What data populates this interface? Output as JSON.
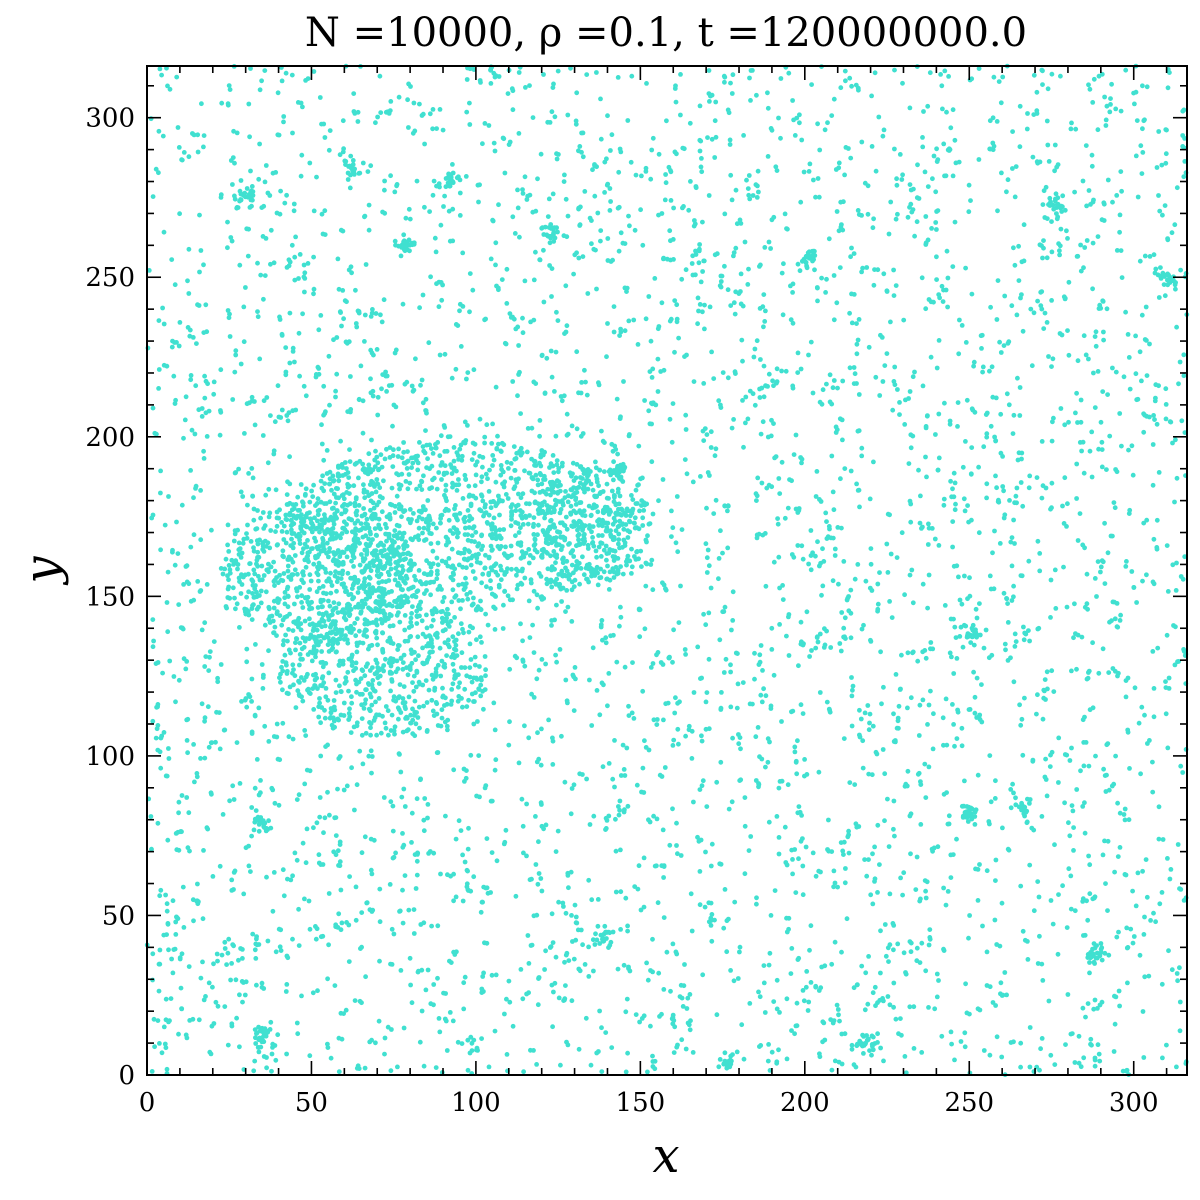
{
  "chart_data": {
    "type": "scatter",
    "title": "N =10000, ρ =0.1, t =120000000.0",
    "xlabel": "x",
    "ylabel": "y",
    "xlim": [
      0,
      316.2
    ],
    "ylim": [
      0,
      316.2
    ],
    "xticks": [
      0,
      50,
      100,
      150,
      200,
      250,
      300
    ],
    "yticks": [
      0,
      50,
      100,
      150,
      200,
      250,
      300
    ],
    "xtick_labels": [
      "0",
      "50",
      "100",
      "150",
      "200",
      "250",
      "300"
    ],
    "ytick_labels": [
      "0",
      "50",
      "100",
      "150",
      "200",
      "250",
      "300"
    ],
    "grid": false,
    "point_color": "#40E0D0",
    "n_points": 10000,
    "cluster": {
      "description": "dense connected blob",
      "approx_x_range": [
        19,
        152
      ],
      "approx_y_range": [
        105,
        200
      ],
      "lobes": [
        {
          "cx": 95,
          "cy": 172,
          "rx": 52,
          "ry": 27
        },
        {
          "cx": 135,
          "cy": 172,
          "rx": 18,
          "ry": 18
        },
        {
          "cx": 52,
          "cy": 158,
          "rx": 30,
          "ry": 22
        },
        {
          "cx": 72,
          "cy": 128,
          "rx": 33,
          "ry": 22
        }
      ]
    },
    "small_clusters": [
      [
        30,
        275
      ],
      [
        79,
        260
      ],
      [
        123,
        264
      ],
      [
        201,
        256
      ],
      [
        62,
        284
      ],
      [
        250,
        138
      ],
      [
        288,
        38
      ],
      [
        250,
        82
      ],
      [
        267,
        84
      ],
      [
        35,
        12
      ],
      [
        276,
        273
      ],
      [
        93,
        280
      ],
      [
        139,
        43
      ],
      [
        35,
        78
      ],
      [
        143,
        190
      ],
      [
        218,
        10
      ],
      [
        177,
        4
      ],
      [
        311,
        250
      ]
    ]
  }
}
